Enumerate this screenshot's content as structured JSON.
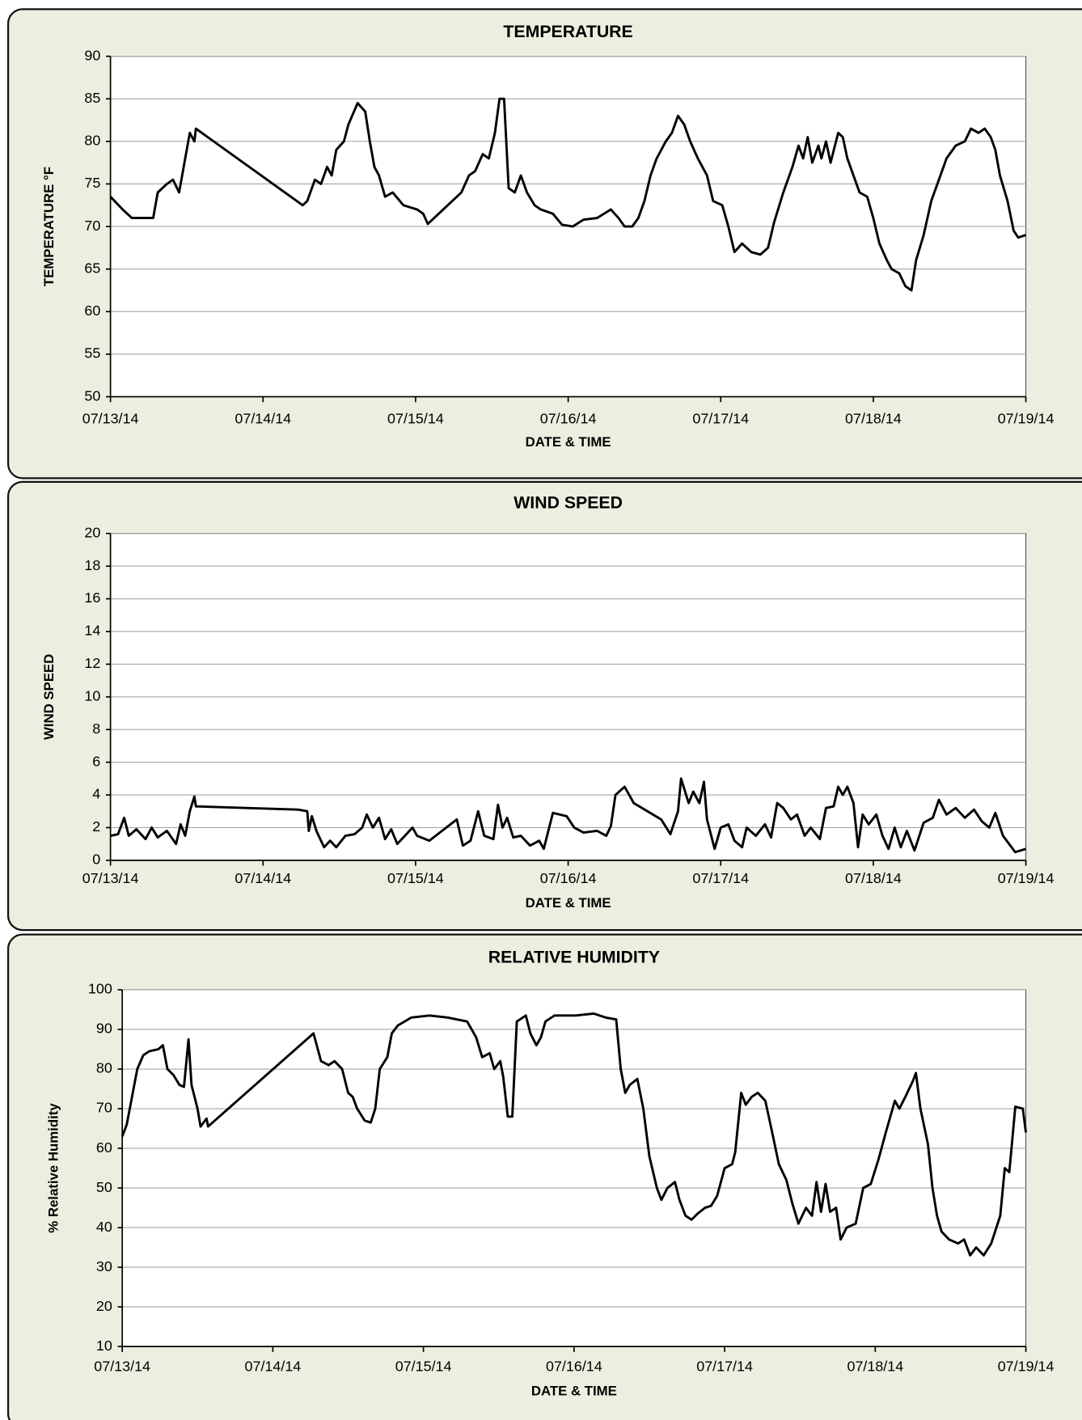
{
  "chart_data": [
    {
      "type": "line",
      "title": "TEMPERATURE",
      "xlabel": "DATE & TIME",
      "ylabel": "TEMPERATURE °F",
      "color": "#000000",
      "grid": true,
      "xlim": [
        0,
        6
      ],
      "ylim": [
        50,
        90
      ],
      "xticks": [
        {
          "value": 0,
          "label": "07/13/14"
        },
        {
          "value": 1,
          "label": "07/14/14"
        },
        {
          "value": 2,
          "label": "07/15/14"
        },
        {
          "value": 3,
          "label": "07/16/14"
        },
        {
          "value": 4,
          "label": "07/17/14"
        },
        {
          "value": 5,
          "label": "07/18/14"
        },
        {
          "value": 6,
          "label": "07/19/14"
        }
      ],
      "yticks": [
        50,
        55,
        60,
        65,
        70,
        75,
        80,
        85,
        90
      ],
      "x": [
        0,
        0.08,
        0.14,
        0.23,
        0.28,
        0.31,
        0.37,
        0.41,
        0.45,
        0.49,
        0.52,
        0.55,
        0.56,
        1.26,
        1.29,
        1.34,
        1.38,
        1.42,
        1.45,
        1.48,
        1.53,
        1.56,
        1.62,
        1.67,
        1.7,
        1.73,
        1.76,
        1.8,
        1.85,
        1.92,
        2.01,
        2.05,
        2.08,
        2.3,
        2.35,
        2.39,
        2.44,
        2.48,
        2.52,
        2.55,
        2.58,
        2.61,
        2.65,
        2.69,
        2.73,
        2.78,
        2.82,
        2.9,
        2.96,
        3.03,
        3.1,
        3.19,
        3.28,
        3.33,
        3.37,
        3.42,
        3.46,
        3.5,
        3.54,
        3.58,
        3.64,
        3.68,
        3.72,
        3.76,
        3.8,
        3.85,
        3.91,
        3.95,
        4.01,
        4.05,
        4.09,
        4.14,
        4.2,
        4.26,
        4.31,
        4.35,
        4.41,
        4.47,
        4.51,
        4.54,
        4.57,
        4.6,
        4.64,
        4.66,
        4.69,
        4.72,
        4.77,
        4.8,
        4.83,
        4.87,
        4.91,
        4.96,
        5,
        5.04,
        5.09,
        5.12,
        5.17,
        5.21,
        5.25,
        5.28,
        5.33,
        5.38,
        5.42,
        5.48,
        5.54,
        5.6,
        5.64,
        5.69,
        5.73,
        5.77,
        5.8,
        5.83,
        5.88,
        5.92,
        5.95,
        6
      ],
      "values": [
        73.5,
        72,
        71,
        71,
        71,
        74,
        75,
        75.5,
        74,
        78,
        81,
        80,
        81.5,
        72.5,
        73,
        75.5,
        75,
        77,
        76,
        79,
        80,
        82,
        84.5,
        83.5,
        80,
        77,
        76,
        73.5,
        74,
        72.5,
        72,
        71.5,
        70.3,
        74,
        76,
        76.5,
        78.5,
        78,
        81,
        85,
        85,
        74.5,
        74,
        76,
        74,
        72.5,
        72,
        71.5,
        70.2,
        70,
        70.8,
        71,
        72,
        71,
        70,
        70,
        71,
        73,
        76,
        78,
        80,
        81,
        83,
        82,
        80,
        78,
        76,
        73,
        72.5,
        70,
        67,
        68,
        67,
        66.7,
        67.5,
        70.5,
        74,
        77,
        79.5,
        78,
        80.5,
        77.5,
        79.5,
        78,
        80,
        77.5,
        81,
        80.5,
        78,
        76,
        74,
        73.5,
        71,
        68,
        66,
        65,
        64.5,
        63,
        62.5,
        66,
        69,
        73,
        75,
        78,
        79.5,
        80,
        81.5,
        81,
        81.5,
        80.5,
        79,
        76,
        73,
        69.5,
        68.7,
        69
      ]
    },
    {
      "type": "line",
      "title": "WIND SPEED",
      "xlabel": "DATE & TIME",
      "ylabel": "WIND SPEED",
      "color": "#000000",
      "grid": true,
      "xlim": [
        0,
        6
      ],
      "ylim": [
        0,
        20
      ],
      "xticks": [
        {
          "value": 0,
          "label": "07/13/14"
        },
        {
          "value": 1,
          "label": "07/14/14"
        },
        {
          "value": 2,
          "label": "07/15/14"
        },
        {
          "value": 3,
          "label": "07/16/14"
        },
        {
          "value": 4,
          "label": "07/17/14"
        },
        {
          "value": 5,
          "label": "07/18/14"
        },
        {
          "value": 6,
          "label": "07/19/14"
        }
      ],
      "yticks": [
        0,
        2,
        4,
        6,
        8,
        10,
        12,
        14,
        16,
        18,
        20
      ],
      "x": [
        0,
        0.05,
        0.09,
        0.12,
        0.17,
        0.23,
        0.27,
        0.31,
        0.37,
        0.43,
        0.46,
        0.49,
        0.52,
        0.55,
        0.56,
        1.23,
        1.29,
        1.3,
        1.32,
        1.35,
        1.4,
        1.44,
        1.48,
        1.54,
        1.6,
        1.65,
        1.68,
        1.72,
        1.76,
        1.8,
        1.84,
        1.88,
        1.93,
        1.98,
        2.01,
        2.09,
        2.27,
        2.31,
        2.36,
        2.41,
        2.45,
        2.51,
        2.54,
        2.57,
        2.6,
        2.64,
        2.69,
        2.75,
        2.81,
        2.84,
        2.9,
        2.99,
        3.04,
        3.1,
        3.19,
        3.25,
        3.28,
        3.31,
        3.37,
        3.43,
        3.52,
        3.61,
        3.67,
        3.72,
        3.74,
        3.79,
        3.82,
        3.86,
        3.89,
        3.91,
        3.96,
        4,
        4.05,
        4.09,
        4.14,
        4.17,
        4.23,
        4.29,
        4.33,
        4.37,
        4.41,
        4.46,
        4.5,
        4.55,
        4.59,
        4.65,
        4.69,
        4.74,
        4.77,
        4.8,
        4.83,
        4.87,
        4.9,
        4.93,
        4.97,
        5.02,
        5.06,
        5.1,
        5.14,
        5.18,
        5.22,
        5.27,
        5.33,
        5.39,
        5.43,
        5.48,
        5.54,
        5.6,
        5.66,
        5.71,
        5.76,
        5.8,
        5.85,
        5.89,
        5.93,
        6
      ],
      "values": [
        1.5,
        1.6,
        2.6,
        1.5,
        1.9,
        1.3,
        2,
        1.4,
        1.8,
        1,
        2.2,
        1.5,
        3,
        3.9,
        3.3,
        3.1,
        3,
        1.8,
        2.7,
        1.8,
        0.8,
        1.2,
        0.8,
        1.5,
        1.6,
        2,
        2.8,
        2,
        2.6,
        1.3,
        1.9,
        1,
        1.5,
        2,
        1.5,
        1.2,
        2.5,
        0.9,
        1.2,
        3,
        1.5,
        1.3,
        3.4,
        2,
        2.6,
        1.4,
        1.5,
        0.9,
        1.2,
        0.7,
        2.9,
        2.7,
        2,
        1.7,
        1.8,
        1.5,
        2.1,
        4,
        4.5,
        3.5,
        3,
        2.5,
        1.6,
        3,
        5,
        3.5,
        4.2,
        3.5,
        4.8,
        2.5,
        0.7,
        2,
        2.2,
        1.2,
        0.8,
        2,
        1.5,
        2.2,
        1.4,
        3.5,
        3.2,
        2.5,
        2.8,
        1.5,
        2,
        1.3,
        3.2,
        3.3,
        4.5,
        4,
        4.5,
        3.5,
        0.8,
        2.8,
        2.2,
        2.8,
        1.5,
        0.7,
        2,
        0.8,
        1.8,
        0.6,
        2.3,
        2.6,
        3.7,
        2.8,
        3.2,
        2.6,
        3.1,
        2.4,
        2,
        2.9,
        1.5,
        1,
        0.5,
        0.7
      ]
    },
    {
      "type": "line",
      "title": "RELATIVE HUMIDITY",
      "xlabel": "DATE & TIME",
      "ylabel": "% Relative Humidity",
      "color": "#000000",
      "grid": true,
      "xlim": [
        0,
        6
      ],
      "ylim": [
        10,
        100
      ],
      "xticks": [
        {
          "value": 0,
          "label": "07/13/14"
        },
        {
          "value": 1,
          "label": "07/14/14"
        },
        {
          "value": 2,
          "label": "07/15/14"
        },
        {
          "value": 3,
          "label": "07/16/14"
        },
        {
          "value": 4,
          "label": "07/17/14"
        },
        {
          "value": 5,
          "label": "07/18/14"
        },
        {
          "value": 6,
          "label": "07/19/14"
        }
      ],
      "yticks": [
        10,
        20,
        30,
        40,
        50,
        60,
        70,
        80,
        90,
        100
      ],
      "x": [
        0,
        0.03,
        0.06,
        0.1,
        0.14,
        0.18,
        0.24,
        0.27,
        0.3,
        0.34,
        0.38,
        0.41,
        0.44,
        0.46,
        0.5,
        0.52,
        0.56,
        0.57,
        1.27,
        1.32,
        1.37,
        1.41,
        1.46,
        1.5,
        1.53,
        1.56,
        1.61,
        1.65,
        1.68,
        1.71,
        1.76,
        1.79,
        1.83,
        1.92,
        2.04,
        2.16,
        2.29,
        2.35,
        2.39,
        2.44,
        2.47,
        2.51,
        2.53,
        2.56,
        2.59,
        2.62,
        2.68,
        2.71,
        2.75,
        2.78,
        2.81,
        2.87,
        3.01,
        3.13,
        3.21,
        3.28,
        3.31,
        3.34,
        3.37,
        3.42,
        3.46,
        3.5,
        3.55,
        3.58,
        3.62,
        3.67,
        3.7,
        3.74,
        3.78,
        3.82,
        3.87,
        3.91,
        3.95,
        4,
        4.05,
        4.07,
        4.11,
        4.14,
        4.18,
        4.22,
        4.27,
        4.31,
        4.36,
        4.41,
        4.45,
        4.49,
        4.54,
        4.58,
        4.61,
        4.64,
        4.67,
        4.7,
        4.74,
        4.77,
        4.81,
        4.87,
        4.92,
        4.97,
        5.02,
        5.07,
        5.13,
        5.16,
        5.2,
        5.25,
        5.27,
        5.3,
        5.35,
        5.38,
        5.41,
        5.44,
        5.49,
        5.55,
        5.59,
        5.63,
        5.67,
        5.72,
        5.77,
        5.83,
        5.86,
        5.89,
        5.93,
        5.98,
        6
      ],
      "values": [
        63,
        66,
        72,
        80,
        83.5,
        84.5,
        85,
        86,
        80,
        78.5,
        76,
        75.5,
        87.5,
        76,
        70,
        65.5,
        67.5,
        65.5,
        89,
        82,
        81,
        82,
        80,
        74,
        73,
        70,
        67,
        66.5,
        70,
        80,
        83,
        89,
        91,
        93,
        93.5,
        93,
        92,
        88,
        83,
        84,
        80,
        82,
        78,
        68,
        68,
        92,
        93.5,
        89,
        86,
        88,
        92,
        93.5,
        93.5,
        94,
        93,
        92.5,
        80,
        74,
        76,
        77.5,
        70,
        58,
        50,
        47,
        50,
        51.5,
        47,
        43,
        42,
        43.5,
        45,
        45.5,
        48,
        55,
        56,
        59,
        74,
        71,
        73,
        74,
        72,
        65,
        56,
        52,
        46,
        41,
        45,
        43,
        51.5,
        44,
        51,
        44,
        45,
        37,
        40,
        41,
        50,
        51,
        57,
        64,
        72,
        70,
        73,
        77,
        79,
        70,
        61,
        50,
        43,
        39,
        37,
        36,
        37,
        33,
        35,
        33,
        36,
        43,
        55,
        54,
        70.5,
        70,
        64
      ]
    }
  ]
}
